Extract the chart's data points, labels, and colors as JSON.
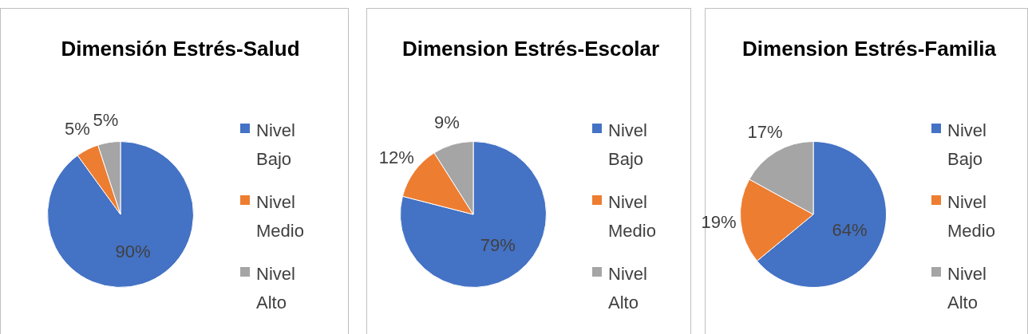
{
  "chart_data": [
    {
      "type": "pie",
      "title": "Dimensión Estrés-Salud",
      "categories": [
        "Nivel Bajo",
        "Nivel Medio",
        "Nivel Alto"
      ],
      "values": [
        90,
        5,
        5
      ],
      "colors": [
        "#4472c4",
        "#ed7d31",
        "#a5a5a5"
      ],
      "value_labels": [
        "90%",
        "5%",
        "5%"
      ],
      "legend": "right"
    },
    {
      "type": "pie",
      "title": "Dimension Estrés-Escolar",
      "categories": [
        "Nivel Bajo",
        "Nivel Medio",
        "Nivel Alto"
      ],
      "values": [
        79,
        12,
        9
      ],
      "colors": [
        "#4472c4",
        "#ed7d31",
        "#a5a5a5"
      ],
      "value_labels": [
        "79%",
        "12%",
        "9%"
      ],
      "legend": "right"
    },
    {
      "type": "pie",
      "title": "Dimension Estrés-Familia",
      "categories": [
        "Nivel Bajo",
        "Nivel Medio",
        "Nivel Alto"
      ],
      "values": [
        64,
        19,
        17
      ],
      "colors": [
        "#4472c4",
        "#ed7d31",
        "#a5a5a5"
      ],
      "value_labels": [
        "64%",
        "19%",
        "17%"
      ],
      "legend": "right"
    }
  ]
}
